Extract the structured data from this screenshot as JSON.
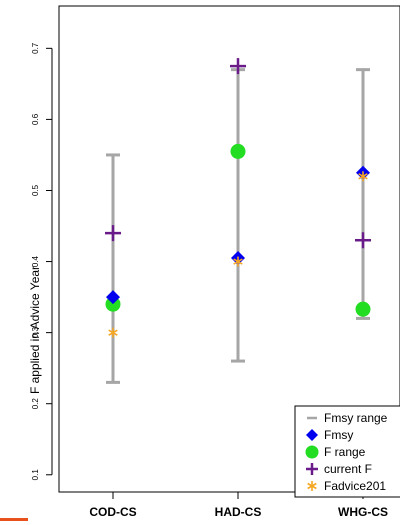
{
  "chart_data": {
    "type": "scatter",
    "title": "",
    "xlabel": "",
    "ylabel": "F applied in Advice Year",
    "ylim": [
      0.08,
      0.73
    ],
    "yticks": [
      "0.1",
      "0.2",
      "0.3",
      "0.4",
      "0.5",
      "0.6",
      "0.7"
    ],
    "categories": [
      "COD-CS",
      "HAD-CS",
      "WHG-CS"
    ],
    "grid": false,
    "legend_position": "bottom-right",
    "ranges": {
      "name": "Fmsy range",
      "color": "#a6a6a6",
      "low": [
        0.23,
        0.26,
        0.32
      ],
      "high": [
        0.55,
        0.67,
        0.67
      ]
    },
    "series": [
      {
        "name": "Fmsy",
        "marker": "diamond",
        "color": "#0000ee",
        "values": [
          0.35,
          0.405,
          0.525
        ]
      },
      {
        "name": "F range",
        "marker": "circle",
        "color": "#22dd22",
        "values": [
          0.34,
          0.555,
          0.333
        ]
      },
      {
        "name": "current F",
        "marker": "plus",
        "color": "#6a1b8a",
        "values": [
          0.44,
          0.675,
          0.43
        ]
      },
      {
        "name": "Fadvice201",
        "marker": "asterisk",
        "color": "#f5a623",
        "values": [
          0.3,
          0.4,
          0.52
        ]
      }
    ]
  },
  "decor": {
    "accent": "#e8501e"
  }
}
